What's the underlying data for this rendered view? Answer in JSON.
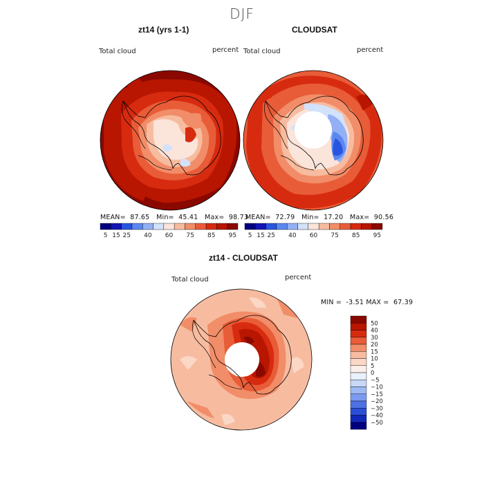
{
  "figure": {
    "main_title": "DJF",
    "colors": {
      "abs_scale": [
        "#00007f",
        "#1414b4",
        "#2a55e0",
        "#5b87f0",
        "#93b0f5",
        "#d2e2fb",
        "#fbe4da",
        "#f7bca0",
        "#f18d68",
        "#e85c38",
        "#d72b10",
        "#b81600",
        "#8a0800"
      ],
      "diff_scale": [
        "#8a0800",
        "#b81600",
        "#d72b10",
        "#e85c38",
        "#f18d68",
        "#f7bca0",
        "#fbd7c6",
        "#fbeee8",
        "#e9f0fb",
        "#c8d8f7",
        "#9fbaf3",
        "#7a9bef",
        "#4d71e3",
        "#2a4fd6",
        "#1228b9",
        "#00007f"
      ],
      "land": "#f7d2c0",
      "hole": "#ffffff"
    }
  },
  "panels": [
    {
      "id": "zt14",
      "title": "zt14 (yrs 1-1)",
      "variable": "Total cloud",
      "units": "percent",
      "stats": {
        "mean_label": "MEAN=",
        "mean": "87.65",
        "min_label": "Min=",
        "min": "45.41",
        "max_label": "Max=",
        "max": "98.73"
      },
      "colorbar_ticks": [
        "5",
        "15",
        "25",
        "40",
        "60",
        "75",
        "85",
        "95"
      ]
    },
    {
      "id": "cloudsat",
      "title": "CLOUDSAT",
      "variable": "Total cloud",
      "units": "percent",
      "stats": {
        "mean_label": "MEAN=",
        "mean": "72.79",
        "min_label": "Min=",
        "min": "17.20",
        "max_label": "Max=",
        "max": "90.56"
      },
      "colorbar_ticks": [
        "5",
        "15",
        "25",
        "40",
        "60",
        "75",
        "85",
        "95"
      ]
    }
  ],
  "difference": {
    "title": "zt14 - CLOUDSAT",
    "variable": "Total cloud",
    "units": "percent",
    "stats": {
      "min_label": "MIN =",
      "min": "-3.51",
      "max_label": "MAX =",
      "max": "67.39"
    },
    "colorbar_ticks": [
      "50",
      "40",
      "30",
      "20",
      "15",
      "10",
      "5",
      "0",
      "−5",
      "−10",
      "−15",
      "−20",
      "−30",
      "−40",
      "−50"
    ]
  }
}
